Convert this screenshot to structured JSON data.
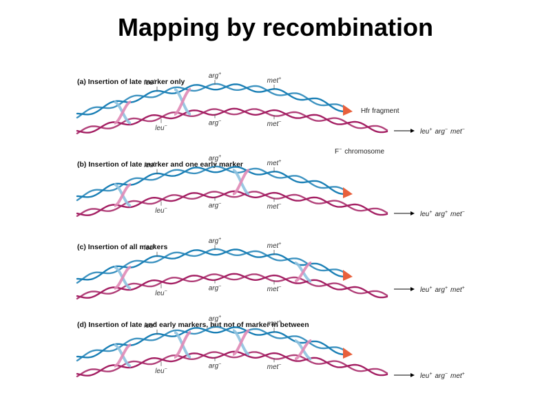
{
  "title": "Mapping by recombination",
  "colors": {
    "hfr": "#1a7fb5",
    "hfr_light": "#8fc3e0",
    "fminus": "#a31e62",
    "fminus_light": "#e08ab6",
    "arrowhead": "#e8603c"
  },
  "labels": {
    "hfr_fragment": "Hfr fragment",
    "f_chromosome": "F",
    "f_chromosome_sup": "−",
    "f_chromosome_rest": "chromosome"
  },
  "panels": [
    {
      "title": "(a) Insertion of late marker only",
      "crossovers": [
        "left-of-leu",
        "between-leu-arg"
      ],
      "top_markers": [
        {
          "gene": "leu",
          "sup": "+"
        },
        {
          "gene": "arg",
          "sup": "+"
        },
        {
          "gene": "met",
          "sup": "+"
        }
      ],
      "bottom_markers": [
        {
          "gene": "leu",
          "sup": "−"
        },
        {
          "gene": "arg",
          "sup": "−"
        },
        {
          "gene": "met",
          "sup": "−"
        }
      ],
      "result": [
        {
          "gene": "leu",
          "sup": "+"
        },
        {
          "gene": "arg",
          "sup": "−"
        },
        {
          "gene": "met",
          "sup": "−"
        }
      ]
    },
    {
      "title": "(b) Insertion of late marker and one early marker",
      "crossovers": [
        "left-of-leu",
        "between-arg-met"
      ],
      "top_markers": [
        {
          "gene": "leu",
          "sup": "+"
        },
        {
          "gene": "arg",
          "sup": "+"
        },
        {
          "gene": "met",
          "sup": "+"
        }
      ],
      "bottom_markers": [
        {
          "gene": "leu",
          "sup": "−"
        },
        {
          "gene": "arg",
          "sup": "−"
        },
        {
          "gene": "met",
          "sup": "−"
        }
      ],
      "result": [
        {
          "gene": "leu",
          "sup": "+"
        },
        {
          "gene": "arg",
          "sup": "+"
        },
        {
          "gene": "met",
          "sup": "−"
        }
      ]
    },
    {
      "title": "(c) Insertion of all markers",
      "crossovers": [
        "left-of-leu",
        "right-of-met"
      ],
      "top_markers": [
        {
          "gene": "leu",
          "sup": "+"
        },
        {
          "gene": "arg",
          "sup": "+"
        },
        {
          "gene": "met",
          "sup": "+"
        }
      ],
      "bottom_markers": [
        {
          "gene": "leu",
          "sup": "−"
        },
        {
          "gene": "arg",
          "sup": "−"
        },
        {
          "gene": "met",
          "sup": "−"
        }
      ],
      "result": [
        {
          "gene": "leu",
          "sup": "+"
        },
        {
          "gene": "arg",
          "sup": "+"
        },
        {
          "gene": "met",
          "sup": "+"
        }
      ]
    },
    {
      "title": "(d) Insertion of late and early markers, but not of marker in between",
      "crossovers": [
        "left-of-leu",
        "between-leu-arg",
        "between-arg-met",
        "right-of-met"
      ],
      "top_markers": [
        {
          "gene": "leu",
          "sup": "+"
        },
        {
          "gene": "arg",
          "sup": "+"
        },
        {
          "gene": "met",
          "sup": "+"
        }
      ],
      "bottom_markers": [
        {
          "gene": "leu",
          "sup": "−"
        },
        {
          "gene": "arg",
          "sup": "−"
        },
        {
          "gene": "met",
          "sup": "−"
        }
      ],
      "result": [
        {
          "gene": "leu",
          "sup": "+"
        },
        {
          "gene": "arg",
          "sup": "−"
        },
        {
          "gene": "met",
          "sup": "+"
        }
      ]
    }
  ]
}
